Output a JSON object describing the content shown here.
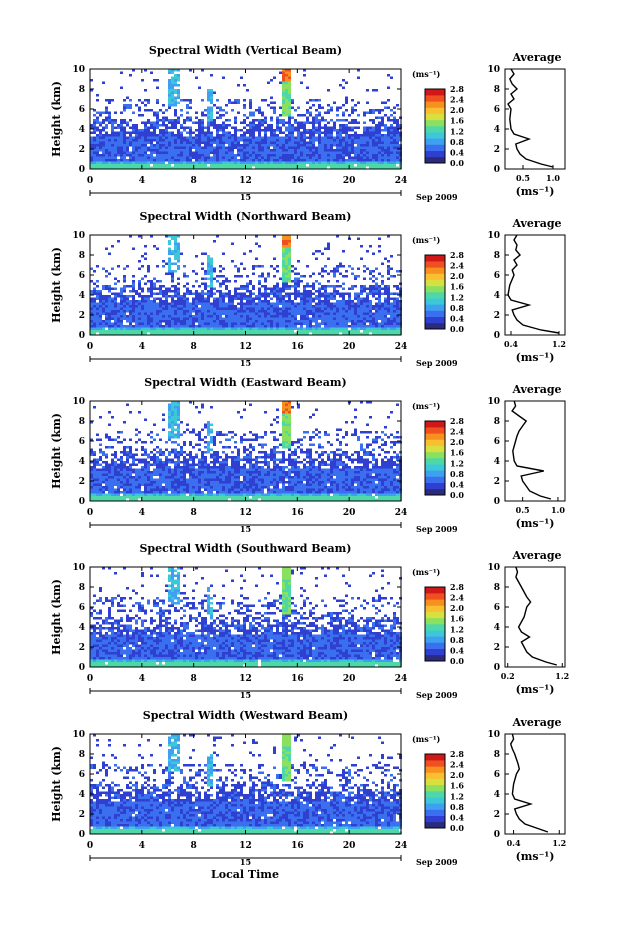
{
  "figure": {
    "colorbar_unit": "(ms⁻¹)",
    "colorbar_ticks": [
      "0.0",
      "0.4",
      "0.8",
      "1.2",
      "1.6",
      "2.0",
      "2.4",
      "2.8"
    ],
    "date_label": "Sep 2009",
    "day_label": "15",
    "xlabel": "Local Time",
    "ylabel": "Height (km)",
    "profile_title": "Average",
    "profile_xlabel": "(ms⁻¹)",
    "colors": [
      "#2b2b7e",
      "#2f3fd0",
      "#3a6ff0",
      "#3da0f0",
      "#3cc8d8",
      "#4ed8a8",
      "#8ce060",
      "#d8e040",
      "#f8c030",
      "#f89020",
      "#f05020",
      "#d01818"
    ]
  },
  "chart_data": [
    {
      "type": "heatmap",
      "title": "Spectral Width (Vertical Beam)",
      "xlabel": "",
      "ylabel": "Height (km)",
      "xlim": [
        0,
        24
      ],
      "ylim": [
        0,
        10
      ],
      "x_ticks": [
        0,
        4,
        8,
        12,
        16,
        20,
        24
      ],
      "y_ticks": [
        0,
        2,
        4,
        6,
        8,
        10
      ],
      "colorbar": {
        "label": "(ms⁻¹)",
        "range": [
          0.0,
          2.8
        ]
      },
      "date": "15 Sep 2009",
      "profile": {
        "title": "Average",
        "xlabel": "(ms⁻¹)",
        "x_ticks": [
          "0.5",
          "1.0"
        ],
        "x_tick_vals": [
          0.5,
          1.0
        ],
        "xlim": [
          0.2,
          1.2
        ],
        "heights": [
          0.2,
          0.5,
          1,
          1.5,
          2,
          2.5,
          3,
          3.5,
          4,
          5,
          6,
          6.5,
          7,
          7.5,
          8,
          8.5,
          9,
          9.5,
          10
        ],
        "values": [
          1.0,
          0.8,
          0.55,
          0.45,
          0.4,
          0.38,
          0.6,
          0.35,
          0.3,
          0.28,
          0.3,
          0.25,
          0.35,
          0.3,
          0.4,
          0.32,
          0.28,
          0.35,
          0.3
        ]
      }
    },
    {
      "type": "heatmap",
      "title": "Spectral Width (Northward Beam)",
      "xlabel": "",
      "ylabel": "Height (km)",
      "xlim": [
        0,
        24
      ],
      "ylim": [
        0,
        10
      ],
      "x_ticks": [
        0,
        4,
        8,
        12,
        16,
        20,
        24
      ],
      "y_ticks": [
        0,
        2,
        4,
        6,
        8,
        10
      ],
      "colorbar": {
        "label": "(ms⁻¹)",
        "range": [
          0.0,
          2.8
        ]
      },
      "date": "15 Sep 2009",
      "profile": {
        "title": "Average",
        "xlabel": "(ms⁻¹)",
        "x_ticks": [
          "0.4",
          "1.2"
        ],
        "x_tick_vals": [
          0.4,
          1.2
        ],
        "xlim": [
          0.3,
          1.3
        ],
        "heights": [
          0.2,
          0.5,
          1,
          1.5,
          2,
          2.5,
          3,
          3.5,
          4,
          5,
          6,
          6.5,
          7,
          7.5,
          8,
          8.5,
          9,
          9.5,
          10
        ],
        "values": [
          1.2,
          0.9,
          0.6,
          0.5,
          0.45,
          0.42,
          0.7,
          0.4,
          0.35,
          0.38,
          0.45,
          0.42,
          0.5,
          0.45,
          0.55,
          0.48,
          0.5,
          0.45,
          0.5
        ]
      }
    },
    {
      "type": "heatmap",
      "title": "Spectral Width (Eastward Beam)",
      "xlabel": "",
      "ylabel": "Height (km)",
      "xlim": [
        0,
        24
      ],
      "ylim": [
        0,
        10
      ],
      "x_ticks": [
        0,
        4,
        8,
        12,
        16,
        20,
        24
      ],
      "y_ticks": [
        0,
        2,
        4,
        6,
        8,
        10
      ],
      "colorbar": {
        "label": "(ms⁻¹)",
        "range": [
          0.0,
          2.8
        ]
      },
      "date": "15 Sep 2009",
      "profile": {
        "title": "Average",
        "xlabel": "(ms⁻¹)",
        "x_ticks": [
          "0.5",
          "1.0"
        ],
        "x_tick_vals": [
          0.5,
          1.0
        ],
        "xlim": [
          0.25,
          1.1
        ],
        "heights": [
          0.2,
          0.5,
          1,
          1.5,
          2,
          2.5,
          3,
          3.5,
          4,
          5,
          6,
          6.5,
          7,
          7.5,
          8,
          8.5,
          9,
          9.5,
          10
        ],
        "values": [
          0.9,
          0.75,
          0.6,
          0.55,
          0.5,
          0.48,
          0.8,
          0.42,
          0.38,
          0.36,
          0.4,
          0.42,
          0.45,
          0.5,
          0.55,
          0.45,
          0.35,
          0.4,
          0.38
        ]
      }
    },
    {
      "type": "heatmap",
      "title": "Spectral Width (Southward Beam)",
      "xlabel": "",
      "ylabel": "Height (km)",
      "xlim": [
        0,
        24
      ],
      "ylim": [
        0,
        10
      ],
      "x_ticks": [
        0,
        4,
        8,
        12,
        16,
        20,
        24
      ],
      "y_ticks": [
        0,
        2,
        4,
        6,
        8,
        10
      ],
      "colorbar": {
        "label": "(ms⁻¹)",
        "range": [
          0.0,
          2.8
        ]
      },
      "date": "15 Sep 2009",
      "profile": {
        "title": "Average",
        "xlabel": "(ms⁻¹)",
        "x_ticks": [
          "0.2",
          "1.2"
        ],
        "x_tick_vals": [
          0.2,
          1.2
        ],
        "xlim": [
          0.15,
          1.25
        ],
        "heights": [
          0.2,
          0.5,
          1,
          1.5,
          2,
          2.5,
          3,
          3.5,
          4,
          5,
          6,
          6.5,
          7,
          7.5,
          8,
          8.5,
          9,
          9.5,
          10
        ],
        "values": [
          1.1,
          0.9,
          0.65,
          0.55,
          0.5,
          0.45,
          0.6,
          0.45,
          0.4,
          0.5,
          0.55,
          0.62,
          0.55,
          0.5,
          0.45,
          0.4,
          0.35,
          0.38,
          0.35
        ]
      }
    },
    {
      "type": "heatmap",
      "title": "Spectral Width (Westward Beam)",
      "xlabel": "Local Time",
      "ylabel": "Height (km)",
      "xlim": [
        0,
        24
      ],
      "ylim": [
        0,
        10
      ],
      "x_ticks": [
        0,
        4,
        8,
        12,
        16,
        20,
        24
      ],
      "y_ticks": [
        0,
        2,
        4,
        6,
        8,
        10
      ],
      "colorbar": {
        "label": "(ms⁻¹)",
        "range": [
          0.0,
          2.8
        ]
      },
      "date": "15 Sep 2009",
      "profile": {
        "title": "Average",
        "xlabel": "(ms⁻¹)",
        "x_ticks": [
          "0.4",
          "1.2"
        ],
        "x_tick_vals": [
          0.4,
          1.2
        ],
        "xlim": [
          0.25,
          1.3
        ],
        "heights": [
          0.2,
          0.5,
          1,
          1.5,
          2,
          2.5,
          3,
          3.5,
          4,
          5,
          6,
          6.5,
          7,
          7.5,
          8,
          8.5,
          9,
          9.5,
          10
        ],
        "values": [
          1.0,
          0.85,
          0.6,
          0.5,
          0.45,
          0.42,
          0.7,
          0.42,
          0.38,
          0.4,
          0.45,
          0.5,
          0.48,
          0.45,
          0.42,
          0.38,
          0.35,
          0.4,
          0.38
        ]
      }
    }
  ]
}
